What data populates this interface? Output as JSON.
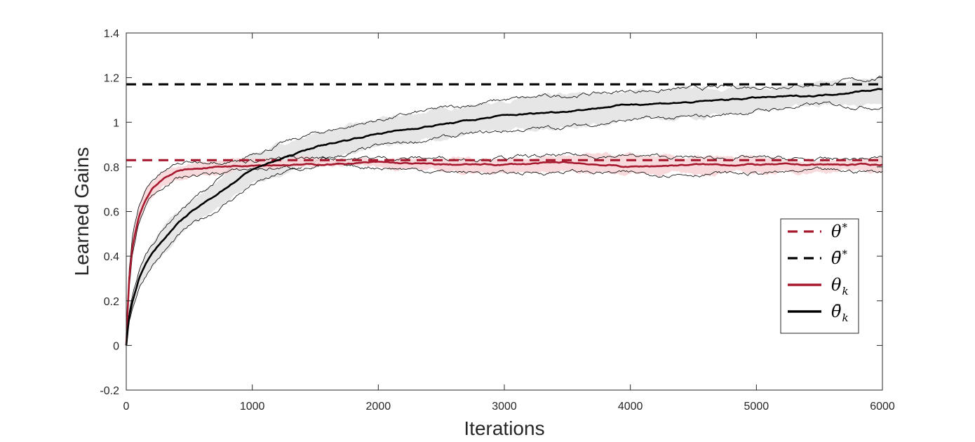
{
  "chart_data": {
    "type": "line",
    "title": "",
    "xlabel": "Iterations",
    "ylabel": "Learned Gains",
    "xlim": [
      0,
      6000
    ],
    "ylim": [
      -0.2,
      1.4
    ],
    "xticks": [
      0,
      1000,
      2000,
      3000,
      4000,
      5000,
      6000
    ],
    "xtick_labels": [
      "0",
      "1000",
      "2000",
      "3000",
      "4000",
      "5000",
      "6000"
    ],
    "yticks": [
      -0.2,
      0,
      0.2,
      0.4,
      0.6,
      0.8,
      1.0,
      1.2,
      1.4
    ],
    "ytick_labels": [
      "-0.2",
      "0",
      "0.2",
      "0.4",
      "0.6",
      "0.8",
      "1",
      "1.2",
      "1.4"
    ],
    "grid": false,
    "legend_position": "right-lower",
    "colors": {
      "red": "#a6192e",
      "black": "#000000",
      "red_fill": "#f7d4d6",
      "black_fill": "#e2e2e2"
    },
    "series": [
      {
        "name": "theta_star",
        "legend": "θ",
        "legend_sup": "*",
        "legend_sub": "",
        "style": "dashed",
        "color": "#a6192e",
        "x": [
          0,
          6000
        ],
        "y": [
          0.83,
          0.83
        ]
      },
      {
        "name": "theta_bar_star",
        "legend": "θ̄",
        "legend_sup": "*",
        "legend_sub": "",
        "style": "dashed",
        "color": "#000000",
        "x": [
          0,
          6000
        ],
        "y": [
          1.17,
          1.17
        ]
      },
      {
        "name": "theta_k",
        "legend": "θ",
        "legend_sup": "",
        "legend_sub": "k",
        "style": "solid",
        "color": "#a6192e",
        "x": [
          0,
          20,
          50,
          100,
          150,
          200,
          300,
          400,
          500,
          700,
          1000,
          1500,
          2000,
          2500,
          3000,
          3500,
          4000,
          4500,
          5000,
          5500,
          6000
        ],
        "y": [
          0.0,
          0.28,
          0.45,
          0.58,
          0.65,
          0.7,
          0.75,
          0.78,
          0.79,
          0.8,
          0.81,
          0.81,
          0.82,
          0.81,
          0.81,
          0.82,
          0.8,
          0.81,
          0.81,
          0.81,
          0.81
        ],
        "band_upper": [
          0.0,
          0.32,
          0.49,
          0.62,
          0.69,
          0.74,
          0.78,
          0.81,
          0.82,
          0.83,
          0.83,
          0.84,
          0.84,
          0.84,
          0.84,
          0.85,
          0.85,
          0.84,
          0.84,
          0.83,
          0.84
        ],
        "band_lower": [
          0.0,
          0.24,
          0.41,
          0.55,
          0.62,
          0.67,
          0.72,
          0.75,
          0.76,
          0.77,
          0.79,
          0.8,
          0.8,
          0.78,
          0.77,
          0.78,
          0.77,
          0.77,
          0.77,
          0.78,
          0.78
        ]
      },
      {
        "name": "theta_bar_k",
        "legend": "θ̄",
        "legend_sup": "",
        "legend_sub": "k",
        "style": "solid",
        "color": "#000000",
        "x": [
          0,
          20,
          50,
          100,
          150,
          200,
          300,
          400,
          500,
          700,
          1000,
          1500,
          2000,
          2500,
          3000,
          3500,
          4000,
          4500,
          5000,
          5500,
          6000
        ],
        "y": [
          0.0,
          0.12,
          0.2,
          0.3,
          0.36,
          0.41,
          0.48,
          0.54,
          0.59,
          0.67,
          0.79,
          0.89,
          0.95,
          0.99,
          1.03,
          1.05,
          1.08,
          1.09,
          1.11,
          1.12,
          1.15
        ],
        "band_upper": [
          0.0,
          0.14,
          0.23,
          0.33,
          0.4,
          0.45,
          0.53,
          0.59,
          0.64,
          0.73,
          0.86,
          0.95,
          1.01,
          1.06,
          1.1,
          1.12,
          1.14,
          1.15,
          1.16,
          1.17,
          1.2
        ],
        "band_lower": [
          0.0,
          0.1,
          0.17,
          0.26,
          0.31,
          0.36,
          0.42,
          0.48,
          0.53,
          0.6,
          0.72,
          0.82,
          0.89,
          0.93,
          0.96,
          0.98,
          1.01,
          1.02,
          1.05,
          1.08,
          1.07
        ]
      }
    ]
  }
}
